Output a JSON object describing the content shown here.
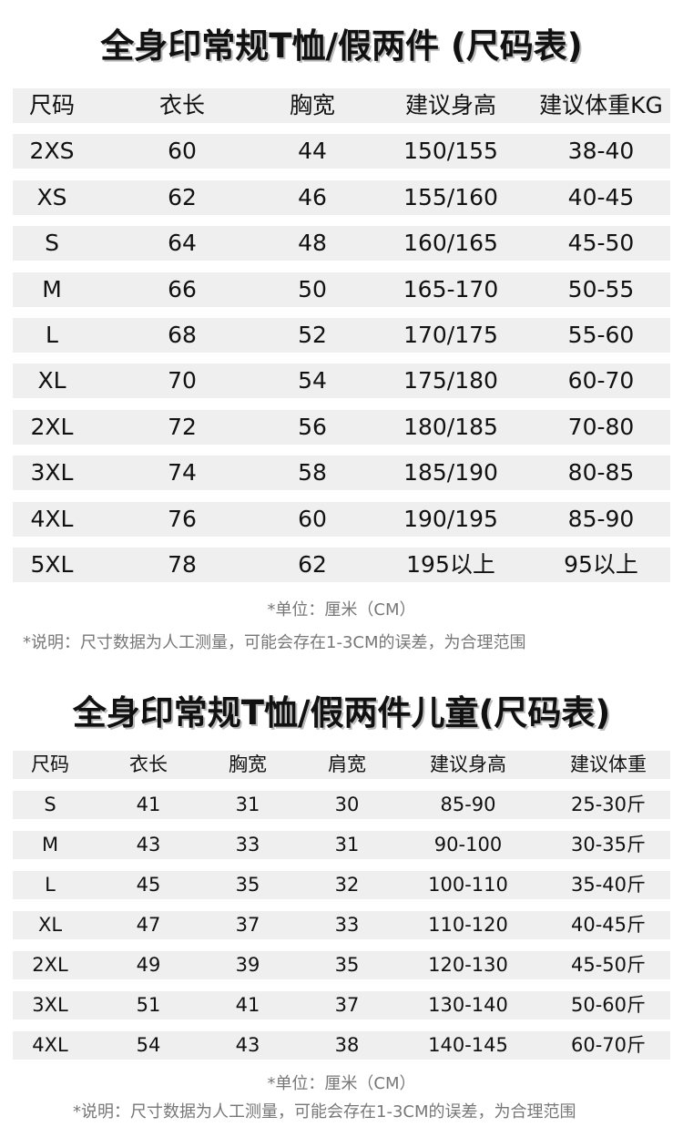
{
  "chart1": {
    "title": "全身印常规T恤/假两件 (尺码表)",
    "headers": [
      "尺码",
      "衣长",
      "胸宽",
      "建议身高",
      "建议体重KG"
    ],
    "rows": [
      [
        "2XS",
        "60",
        "44",
        "150/155",
        "38-40"
      ],
      [
        "XS",
        "62",
        "46",
        "155/160",
        "40-45"
      ],
      [
        "S",
        "64",
        "48",
        "160/165",
        "45-50"
      ],
      [
        "M",
        "66",
        "50",
        "165-170",
        "50-55"
      ],
      [
        "L",
        "68",
        "52",
        "170/175",
        "55-60"
      ],
      [
        "XL",
        "70",
        "54",
        "175/180",
        "60-70"
      ],
      [
        "2XL",
        "72",
        "56",
        "180/185",
        "70-80"
      ],
      [
        "3XL",
        "74",
        "58",
        "185/190",
        "80-85"
      ],
      [
        "4XL",
        "76",
        "60",
        "190/195",
        "85-90"
      ],
      [
        "5XL",
        "78",
        "62",
        "195以上",
        "95以上"
      ]
    ],
    "unit_note": "*单位：厘米（CM）",
    "desc_note": "*说明：尺寸数据为人工测量，可能会存在1-3CM的误差，为合理范围"
  },
  "chart2": {
    "title": "全身印常规T恤/假两件儿童(尺码表)",
    "headers": [
      "尺码",
      "衣长",
      "胸宽",
      "肩宽",
      "建议身高",
      "建议体重"
    ],
    "rows": [
      [
        "S",
        "41",
        "31",
        "30",
        "85-90",
        "25-30斤"
      ],
      [
        "M",
        "43",
        "33",
        "31",
        "90-100",
        "30-35斤"
      ],
      [
        "L",
        "45",
        "35",
        "32",
        "100-110",
        "35-40斤"
      ],
      [
        "XL",
        "47",
        "37",
        "33",
        "110-120",
        "40-45斤"
      ],
      [
        "2XL",
        "49",
        "39",
        "35",
        "120-130",
        "45-50斤"
      ],
      [
        "3XL",
        "51",
        "41",
        "37",
        "130-140",
        "50-60斤"
      ],
      [
        "4XL",
        "54",
        "43",
        "38",
        "140-145",
        "60-70斤"
      ]
    ],
    "unit_note": "*单位：厘米（CM）",
    "desc_note": "*说明：尺寸数据为人工测量，可能会存在1-3CM的误差，为合理范围"
  },
  "colors": {
    "row_bg": "#efefef",
    "note_text": "#777777"
  }
}
